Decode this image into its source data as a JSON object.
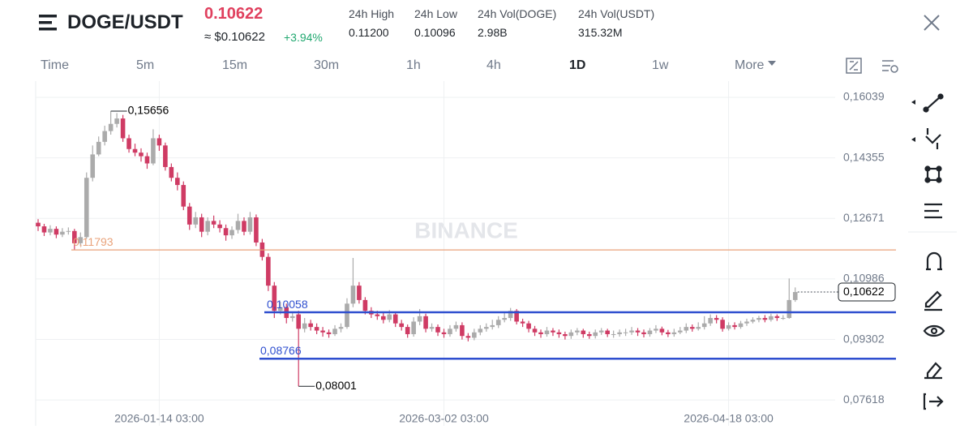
{
  "header": {
    "symbol": "DOGE/USDT",
    "price": "0.10622",
    "approx": "≈ $0.10622",
    "change": "+3.94%",
    "stats": [
      {
        "label": "24h High",
        "value": "0.11200"
      },
      {
        "label": "24h Low",
        "value": "0.10096"
      },
      {
        "label": "24h Vol(DOGE)",
        "value": "2.98B"
      },
      {
        "label": "24h Vol(USDT)",
        "value": "315.32M"
      }
    ]
  },
  "timeframes": [
    "Time",
    "5m",
    "15m",
    "30m",
    "1h",
    "4h",
    "1D",
    "1w",
    "More"
  ],
  "active_timeframe": "1D",
  "watermark": "BINANCE",
  "chart_data": {
    "type": "candlestick",
    "categories": [
      null,
      null,
      null,
      null,
      null,
      null,
      null,
      null,
      null,
      null,
      null,
      null,
      null,
      null,
      null,
      null,
      null,
      null,
      null,
      null,
      "2026-01-14 03:00",
      null,
      null,
      null,
      null,
      null,
      null,
      null,
      null,
      null,
      null,
      null,
      null,
      null,
      null,
      null,
      null,
      null,
      null,
      null,
      null,
      null,
      null,
      null,
      null,
      null,
      null,
      null,
      null,
      null,
      null,
      null,
      null,
      null,
      null,
      null,
      null,
      null,
      null,
      null,
      null,
      null,
      null,
      null,
      null,
      null,
      null,
      "2026-03-02 03:00",
      null,
      null,
      null,
      null,
      null,
      null,
      null,
      null,
      null,
      null,
      null,
      null,
      null,
      null,
      null,
      null,
      null,
      null,
      null,
      null,
      null,
      null,
      null,
      null,
      null,
      null,
      null,
      null,
      null,
      null,
      null,
      null,
      null,
      null,
      null,
      null,
      null,
      null,
      null,
      null,
      null,
      null,
      null,
      null,
      null,
      null,
      "2026-04-18 03:00",
      null,
      null,
      null,
      null,
      null,
      null,
      null,
      null,
      null,
      null,
      null
    ],
    "open": [
      0.1255,
      0.1245,
      0.1228,
      0.1238,
      0.1222,
      0.123,
      0.1232,
      0.1198,
      0.1215,
      0.138,
      0.1445,
      0.148,
      0.151,
      0.153,
      0.1545,
      0.149,
      0.146,
      0.145,
      0.144,
      0.142,
      0.149,
      0.147,
      0.141,
      0.138,
      0.136,
      0.13,
      0.125,
      0.127,
      0.123,
      0.126,
      0.125,
      0.124,
      0.122,
      0.1235,
      0.126,
      0.123,
      0.127,
      0.12,
      0.116,
      0.108,
      0.101,
      0.102,
      0.099,
      0.1,
      0.096,
      0.0975,
      0.0965,
      0.0955,
      0.095,
      0.0945,
      0.096,
      0.0965,
      0.103,
      0.108,
      0.104,
      0.101,
      0.1,
      0.0995,
      0.0985,
      0.1,
      0.0975,
      0.0965,
      0.0945,
      0.098,
      0.0995,
      0.096,
      0.0965,
      0.095,
      0.0945,
      0.096,
      0.097,
      0.094,
      0.0935,
      0.095,
      0.096,
      0.0965,
      0.097,
      0.0985,
      0.099,
      0.101,
      0.098,
      0.0975,
      0.096,
      0.095,
      0.0945,
      0.0955,
      0.095,
      0.0945,
      0.094,
      0.095,
      0.0955,
      0.0945,
      0.094,
      0.095,
      0.0955,
      0.0945,
      0.0945,
      0.095,
      0.095,
      0.0955,
      0.095,
      0.0945,
      0.0955,
      0.096,
      0.095,
      0.0945,
      0.095,
      0.0955,
      0.0965,
      0.096,
      0.0965,
      0.0975,
      0.099,
      0.0985,
      0.096,
      0.097,
      0.0965,
      0.0975,
      0.098,
      0.0985,
      0.099,
      0.0985,
      0.0995,
      0.099,
      0.099,
      0.104
    ],
    "high": [
      0.1265,
      0.1252,
      0.1248,
      0.1245,
      0.124,
      0.1242,
      0.1238,
      0.1228,
      0.1395,
      0.147,
      0.1495,
      0.1525,
      0.15656,
      0.156,
      0.1555,
      0.15,
      0.1475,
      0.1462,
      0.145,
      0.1515,
      0.15,
      0.1478,
      0.142,
      0.1395,
      0.137,
      0.131,
      0.1285,
      0.128,
      0.127,
      0.1275,
      0.1262,
      0.125,
      0.1245,
      0.128,
      0.127,
      0.1285,
      0.1278,
      0.121,
      0.117,
      0.109,
      0.1035,
      0.103,
      0.1005,
      0.101,
      0.099,
      0.0985,
      0.0975,
      0.0965,
      0.0958,
      0.097,
      0.0975,
      0.1045,
      0.1157,
      0.109,
      0.1048,
      0.102,
      0.101,
      0.1005,
      0.1012,
      0.1008,
      0.0985,
      0.0972,
      0.0992,
      0.1015,
      0.1002,
      0.0975,
      0.0972,
      0.096,
      0.097,
      0.098,
      0.0978,
      0.0948,
      0.096,
      0.097,
      0.0975,
      0.0985,
      0.0995,
      0.1008,
      0.1018,
      0.1015,
      0.0988,
      0.0982,
      0.0968,
      0.0958,
      0.0965,
      0.0962,
      0.0958,
      0.0952,
      0.0958,
      0.0962,
      0.096,
      0.0952,
      0.0958,
      0.0962,
      0.096,
      0.0955,
      0.0958,
      0.096,
      0.0965,
      0.0962,
      0.0958,
      0.0962,
      0.097,
      0.0966,
      0.0957,
      0.096,
      0.0965,
      0.0975,
      0.0972,
      0.0978,
      0.0995,
      0.1,
      0.0998,
      0.0992,
      0.0978,
      0.0978,
      0.0982,
      0.0988,
      0.0992,
      0.0996,
      0.0998,
      0.1002,
      0.1,
      0.0998,
      0.11,
      0.1075
    ],
    "low": [
      0.1232,
      0.1218,
      0.122,
      0.1212,
      0.1215,
      0.1222,
      0.118,
      0.119,
      0.121,
      0.137,
      0.144,
      0.147,
      0.15,
      0.152,
      0.148,
      0.145,
      0.144,
      0.1425,
      0.1405,
      0.1415,
      0.1455,
      0.14,
      0.137,
      0.1345,
      0.129,
      0.1235,
      0.124,
      0.1215,
      0.122,
      0.124,
      0.1228,
      0.1205,
      0.121,
      0.1225,
      0.122,
      0.1222,
      0.119,
      0.115,
      0.1065,
      0.099,
      0.1,
      0.0975,
      0.098,
      0.08001,
      0.095,
      0.0955,
      0.0945,
      0.0938,
      0.0935,
      0.094,
      0.095,
      0.096,
      0.102,
      0.103,
      0.1,
      0.099,
      0.0985,
      0.0975,
      0.0978,
      0.0965,
      0.0955,
      0.0935,
      0.0938,
      0.097,
      0.095,
      0.0952,
      0.094,
      0.0935,
      0.0938,
      0.0952,
      0.093,
      0.0925,
      0.0928,
      0.0942,
      0.0952,
      0.0958,
      0.0962,
      0.0978,
      0.0982,
      0.0972,
      0.0965,
      0.095,
      0.094,
      0.0935,
      0.0938,
      0.094,
      0.0935,
      0.093,
      0.0932,
      0.0942,
      0.0935,
      0.0932,
      0.0933,
      0.0943,
      0.0937,
      0.0935,
      0.0938,
      0.094,
      0.0943,
      0.094,
      0.0936,
      0.0938,
      0.0948,
      0.0942,
      0.0937,
      0.0938,
      0.0945,
      0.0948,
      0.0952,
      0.0955,
      0.0958,
      0.0968,
      0.0975,
      0.0952,
      0.0955,
      0.0958,
      0.096,
      0.0968,
      0.0975,
      0.0978,
      0.0978,
      0.098,
      0.0982,
      0.0985,
      0.0988,
      0.1035
    ],
    "close": [
      0.1245,
      0.1228,
      0.1238,
      0.1222,
      0.123,
      0.1232,
      0.1198,
      0.1215,
      0.138,
      0.1445,
      0.148,
      0.151,
      0.153,
      0.1545,
      0.149,
      0.146,
      0.145,
      0.144,
      0.142,
      0.149,
      0.147,
      0.141,
      0.138,
      0.136,
      0.13,
      0.125,
      0.127,
      0.123,
      0.126,
      0.125,
      0.124,
      0.122,
      0.1235,
      0.126,
      0.123,
      0.127,
      0.12,
      0.116,
      0.108,
      0.101,
      0.102,
      0.099,
      0.0995,
      0.096,
      0.0975,
      0.0965,
      0.0955,
      0.095,
      0.0945,
      0.096,
      0.0965,
      0.103,
      0.108,
      0.104,
      0.101,
      0.1,
      0.0995,
      0.0985,
      0.1,
      0.0975,
      0.0965,
      0.0945,
      0.098,
      0.0995,
      0.096,
      0.0965,
      0.095,
      0.0945,
      0.096,
      0.097,
      0.094,
      0.0935,
      0.095,
      0.096,
      0.0965,
      0.097,
      0.0985,
      0.099,
      0.101,
      0.098,
      0.0975,
      0.096,
      0.095,
      0.0945,
      0.0955,
      0.095,
      0.0945,
      0.094,
      0.095,
      0.0955,
      0.0945,
      0.094,
      0.095,
      0.0955,
      0.0945,
      0.0945,
      0.095,
      0.095,
      0.0955,
      0.095,
      0.0945,
      0.0955,
      0.096,
      0.095,
      0.0945,
      0.095,
      0.0955,
      0.0965,
      0.096,
      0.0965,
      0.0975,
      0.099,
      0.0985,
      0.096,
      0.097,
      0.0965,
      0.0975,
      0.098,
      0.0985,
      0.099,
      0.0985,
      0.0995,
      0.099,
      0.099,
      0.104,
      0.10622
    ],
    "up_color": "#ababab",
    "down_color": "#cf3b64",
    "ylim": [
      0.069,
      0.1649
    ],
    "yticks": [
      {
        "value": 0.16039,
        "label": "0,16039"
      },
      {
        "value": 0.14355,
        "label": "0,14355"
      },
      {
        "value": 0.12671,
        "label": "0,12671"
      },
      {
        "value": 0.10986,
        "label": "0,10986"
      },
      {
        "value": 0.09302,
        "label": "0,09302"
      },
      {
        "value": 0.07618,
        "label": "0,07618"
      }
    ],
    "grid": true,
    "high_marker": {
      "value": 0.15656,
      "label": "0,15656"
    },
    "low_marker": {
      "value": 0.08001,
      "label": "0,08001"
    },
    "hlines": [
      {
        "value": 0.11793,
        "label": "0,11793",
        "color": "#e9a27a"
      },
      {
        "value": 0.10058,
        "label": "0,10058",
        "color": "#2f4fcf"
      },
      {
        "value": 0.08766,
        "label": "0,08766",
        "color": "#2f4fcf"
      }
    ],
    "last_price": {
      "value": 0.10622,
      "label": "0,10622"
    }
  }
}
